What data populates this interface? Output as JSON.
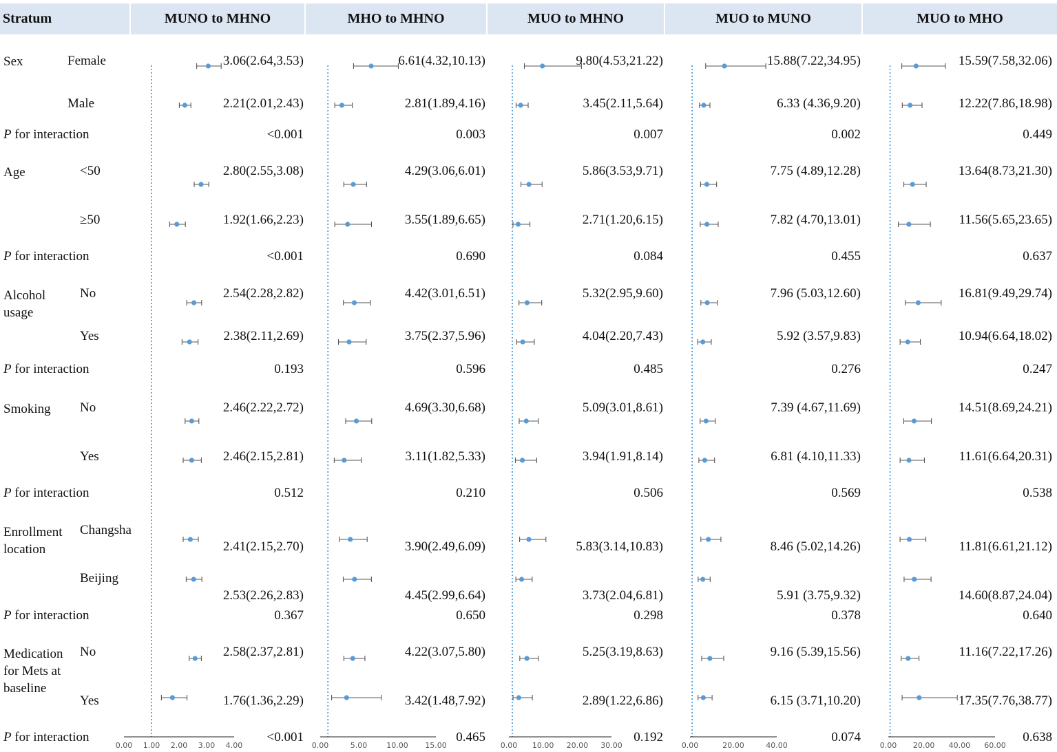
{
  "header": {
    "stratum": "Stratum",
    "panels": [
      "MUNO to MHNO",
      "MHO to MHNO",
      "MUO to MHNO",
      "MUO to MUNO",
      "MUO to MHO"
    ]
  },
  "groups": [
    {
      "label": "Sex",
      "subgroups": [
        "Female",
        "Male"
      ]
    },
    {
      "label": "Age",
      "subgroups": [
        "<50",
        "≥50"
      ]
    },
    {
      "label": "Alcohol usage",
      "subgroups": [
        "No",
        "Yes"
      ]
    },
    {
      "label": "Smoking",
      "subgroups": [
        "No",
        "Yes"
      ]
    },
    {
      "label": "Enrollment location",
      "subgroups": [
        "Changsha",
        "Beijing"
      ]
    },
    {
      "label": "Medication for Mets at baseline",
      "subgroups": [
        "No",
        "Yes"
      ]
    }
  ],
  "p_label_italic": "P",
  "p_label_rest": " for interaction",
  "chart_data": {
    "type": "forest",
    "reference_line": 1,
    "panels": [
      {
        "title": "MUNO to MHNO",
        "xlim": [
          0,
          4
        ],
        "ticks": [
          "0.00",
          "1.00",
          "2.00",
          "3.00",
          "4.00"
        ],
        "rows": [
          {
            "est": 3.06,
            "lo": 2.64,
            "hi": 3.53,
            "label": "3.06(2.64,3.53)"
          },
          {
            "est": 2.21,
            "lo": 2.01,
            "hi": 2.43,
            "label": "2.21(2.01,2.43)"
          },
          {
            "est": 2.8,
            "lo": 2.55,
            "hi": 3.08,
            "label": "2.80(2.55,3.08)"
          },
          {
            "est": 1.92,
            "lo": 1.66,
            "hi": 2.23,
            "label": "1.92(1.66,2.23)"
          },
          {
            "est": 2.54,
            "lo": 2.28,
            "hi": 2.82,
            "label": "2.54(2.28,2.82)"
          },
          {
            "est": 2.38,
            "lo": 2.11,
            "hi": 2.69,
            "label": "2.38(2.11,2.69)"
          },
          {
            "est": 2.46,
            "lo": 2.22,
            "hi": 2.72,
            "label": "2.46(2.22,2.72)"
          },
          {
            "est": 2.46,
            "lo": 2.15,
            "hi": 2.81,
            "label": "2.46(2.15,2.81)"
          },
          {
            "est": 2.41,
            "lo": 2.15,
            "hi": 2.7,
            "label": "2.41(2.15,2.70)"
          },
          {
            "est": 2.53,
            "lo": 2.26,
            "hi": 2.83,
            "label": "2.53(2.26,2.83)"
          },
          {
            "est": 2.58,
            "lo": 2.37,
            "hi": 2.81,
            "label": "2.58(2.37,2.81)"
          },
          {
            "est": 1.76,
            "lo": 1.36,
            "hi": 2.29,
            "label": "1.76(1.36,2.29)"
          }
        ],
        "p": [
          "<0.001",
          "<0.001",
          "0.193",
          "0.512",
          "0.367",
          "<0.001"
        ]
      },
      {
        "title": "MHO to MHNO",
        "xlim": [
          0,
          15
        ],
        "ticks": [
          "0.00",
          "5.00",
          "10.00",
          "15.00"
        ],
        "rows": [
          {
            "est": 6.61,
            "lo": 4.32,
            "hi": 10.13,
            "label": "6.61(4.32,10.13)"
          },
          {
            "est": 2.81,
            "lo": 1.89,
            "hi": 4.16,
            "label": "2.81(1.89,4.16)"
          },
          {
            "est": 4.29,
            "lo": 3.06,
            "hi": 6.01,
            "label": "4.29(3.06,6.01)"
          },
          {
            "est": 3.55,
            "lo": 1.89,
            "hi": 6.65,
            "label": "3.55(1.89,6.65)"
          },
          {
            "est": 4.42,
            "lo": 3.01,
            "hi": 6.51,
            "label": "4.42(3.01,6.51)"
          },
          {
            "est": 3.75,
            "lo": 2.37,
            "hi": 5.96,
            "label": "3.75(2.37,5.96)"
          },
          {
            "est": 4.69,
            "lo": 3.3,
            "hi": 6.68,
            "label": "4.69(3.30,6.68)"
          },
          {
            "est": 3.11,
            "lo": 1.82,
            "hi": 5.33,
            "label": "3.11(1.82,5.33)"
          },
          {
            "est": 3.9,
            "lo": 2.49,
            "hi": 6.09,
            "label": "3.90(2.49,6.09)"
          },
          {
            "est": 4.45,
            "lo": 2.99,
            "hi": 6.64,
            "label": "4.45(2.99,6.64)"
          },
          {
            "est": 4.22,
            "lo": 3.07,
            "hi": 5.8,
            "label": "4.22(3.07,5.80)"
          },
          {
            "est": 3.42,
            "lo": 1.48,
            "hi": 7.92,
            "label": "3.42(1.48,7.92)"
          }
        ],
        "p": [
          "0.003",
          "0.690",
          "0.596",
          "0.210",
          "0.650",
          "0.465"
        ]
      },
      {
        "title": "MUO to MHNO",
        "xlim": [
          0,
          30
        ],
        "ticks": [
          "0.00",
          "10.00",
          "20.00",
          "30.00"
        ],
        "rows": [
          {
            "est": 9.8,
            "lo": 4.53,
            "hi": 21.22,
            "label": "9.80(4.53,21.22)"
          },
          {
            "est": 3.45,
            "lo": 2.11,
            "hi": 5.64,
            "label": "3.45(2.11,5.64)"
          },
          {
            "est": 5.86,
            "lo": 3.53,
            "hi": 9.71,
            "label": "5.86(3.53,9.71)"
          },
          {
            "est": 2.71,
            "lo": 1.2,
            "hi": 6.15,
            "label": "2.71(1.20,6.15)"
          },
          {
            "est": 5.32,
            "lo": 2.95,
            "hi": 9.6,
            "label": "5.32(2.95,9.60)"
          },
          {
            "est": 4.04,
            "lo": 2.2,
            "hi": 7.43,
            "label": "4.04(2.20,7.43)"
          },
          {
            "est": 5.09,
            "lo": 3.01,
            "hi": 8.61,
            "label": "5.09(3.01,8.61)"
          },
          {
            "est": 3.94,
            "lo": 1.91,
            "hi": 8.14,
            "label": "3.94(1.91,8.14)"
          },
          {
            "est": 5.83,
            "lo": 3.14,
            "hi": 10.83,
            "label": "5.83(3.14,10.83)"
          },
          {
            "est": 3.73,
            "lo": 2.04,
            "hi": 6.81,
            "label": "3.73(2.04,6.81)"
          },
          {
            "est": 5.25,
            "lo": 3.19,
            "hi": 8.63,
            "label": "5.25(3.19,8.63)"
          },
          {
            "est": 2.89,
            "lo": 1.22,
            "hi": 6.86,
            "label": "2.89(1.22,6.86)"
          }
        ],
        "p": [
          "0.007",
          "0.084",
          "0.485",
          "0.506",
          "0.298",
          "0.192"
        ]
      },
      {
        "title": "MUO to MUNO",
        "xlim": [
          0,
          40
        ],
        "ticks": [
          "0.00",
          "20.00",
          "40.00"
        ],
        "rows": [
          {
            "est": 15.88,
            "lo": 7.22,
            "hi": 34.95,
            "label": "15.88(7.22,34.95)"
          },
          {
            "est": 6.33,
            "lo": 4.36,
            "hi": 9.2,
            "label": "6.33 (4.36,9.20)"
          },
          {
            "est": 7.75,
            "lo": 4.89,
            "hi": 12.28,
            "label": "7.75 (4.89,12.28)"
          },
          {
            "est": 7.82,
            "lo": 4.7,
            "hi": 13.01,
            "label": "7.82 (4.70,13.01)"
          },
          {
            "est": 7.96,
            "lo": 5.03,
            "hi": 12.6,
            "label": "7.96 (5.03,12.60)"
          },
          {
            "est": 5.92,
            "lo": 3.57,
            "hi": 9.83,
            "label": "5.92 (3.57,9.83)"
          },
          {
            "est": 7.39,
            "lo": 4.67,
            "hi": 11.69,
            "label": "7.39 (4.67,11.69)"
          },
          {
            "est": 6.81,
            "lo": 4.1,
            "hi": 11.33,
            "label": "6.81 (4.10,11.33)"
          },
          {
            "est": 8.46,
            "lo": 5.02,
            "hi": 14.26,
            "label": "8.46 (5.02,14.26)"
          },
          {
            "est": 5.91,
            "lo": 3.75,
            "hi": 9.32,
            "label": "5.91 (3.75,9.32)"
          },
          {
            "est": 9.16,
            "lo": 5.39,
            "hi": 15.56,
            "label": "9.16 (5.39,15.56)"
          },
          {
            "est": 6.15,
            "lo": 3.71,
            "hi": 10.2,
            "label": "6.15 (3.71,10.20)"
          }
        ],
        "p": [
          "0.002",
          "0.455",
          "0.276",
          "0.569",
          "0.378",
          "0.074"
        ]
      },
      {
        "title": "MUO to MHO",
        "xlim": [
          0,
          60
        ],
        "ticks": [
          "0.00",
          "20.00",
          "40.00",
          "60.00"
        ],
        "rows": [
          {
            "est": 15.59,
            "lo": 7.58,
            "hi": 32.06,
            "label": "15.59(7.58,32.06)"
          },
          {
            "est": 12.22,
            "lo": 7.86,
            "hi": 18.98,
            "label": "12.22(7.86,18.98)"
          },
          {
            "est": 13.64,
            "lo": 8.73,
            "hi": 21.3,
            "label": "13.64(8.73,21.30)"
          },
          {
            "est": 11.56,
            "lo": 5.65,
            "hi": 23.65,
            "label": "11.56(5.65,23.65)"
          },
          {
            "est": 16.81,
            "lo": 9.49,
            "hi": 29.74,
            "label": "16.81(9.49,29.74)"
          },
          {
            "est": 10.94,
            "lo": 6.64,
            "hi": 18.02,
            "label": "10.94(6.64,18.02)"
          },
          {
            "est": 14.51,
            "lo": 8.69,
            "hi": 24.21,
            "label": "14.51(8.69,24.21)"
          },
          {
            "est": 11.61,
            "lo": 6.64,
            "hi": 20.31,
            "label": "11.61(6.64,20.31)"
          },
          {
            "est": 11.81,
            "lo": 6.61,
            "hi": 21.12,
            "label": "11.81(6.61,21.12)"
          },
          {
            "est": 14.6,
            "lo": 8.87,
            "hi": 24.04,
            "label": "14.60(8.87,24.04)"
          },
          {
            "est": 11.16,
            "lo": 7.22,
            "hi": 17.26,
            "label": "11.16(7.22,17.26)"
          },
          {
            "est": 17.35,
            "lo": 7.76,
            "hi": 38.77,
            "label": "17.35(7.76,38.77)"
          }
        ],
        "p": [
          "0.449",
          "0.637",
          "0.247",
          "0.538",
          "0.640",
          "0.638"
        ]
      }
    ],
    "colors": {
      "point": "#5b9bd5",
      "ci": "#555555",
      "refline": "#3a8fd9",
      "header_bg": "#dce6f3"
    }
  }
}
